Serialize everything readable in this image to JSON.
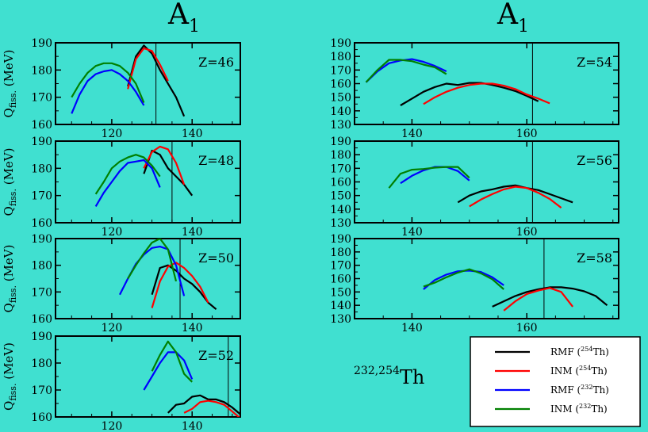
{
  "figure": {
    "background": "#40e0d0",
    "column_titles": [
      {
        "main": "A",
        "sub": "1"
      },
      {
        "main": "A",
        "sub": "1"
      }
    ],
    "ylabel": {
      "main": "Q",
      "sub": "fiss.",
      "unit": "(MeV)"
    },
    "nucleus_label": {
      "sup": "232,254",
      "main": "Th"
    }
  },
  "legend": {
    "entries": [
      {
        "name": "RMF",
        "sup": "254",
        "el": "Th",
        "color": "#000000"
      },
      {
        "name": "INM",
        "sup": "254",
        "el": "Th",
        "color": "#ff0000"
      },
      {
        "name": "RMF",
        "sup": "232",
        "el": "Th",
        "color": "#0000ff"
      },
      {
        "name": "INM",
        "sup": "232",
        "el": "Th",
        "color": "#008000"
      }
    ]
  },
  "chart_data": [
    {
      "type": "line",
      "panel_label": "Z=46",
      "xlabel": "A1",
      "ylabel": "Q_fiss. (MeV)",
      "xlim": [
        106,
        152
      ],
      "ylim": [
        160,
        190
      ],
      "xticks": [
        120,
        140
      ],
      "yticks": [
        160,
        170,
        180,
        190
      ],
      "vline": 131,
      "series": [
        {
          "name": "RMF (254Th)",
          "color": "#000000",
          "x": [
            124,
            126,
            128,
            130,
            132,
            134,
            136,
            138
          ],
          "y": [
            174,
            185,
            189,
            186,
            180,
            175,
            170,
            163
          ]
        },
        {
          "name": "INM (254Th)",
          "color": "#ff0000",
          "x": [
            124,
            126,
            128,
            130,
            132,
            134
          ],
          "y": [
            173,
            184,
            188,
            187,
            182,
            176
          ]
        },
        {
          "name": "RMF (232Th)",
          "color": "#0000ff",
          "x": [
            110,
            112,
            114,
            116,
            118,
            120,
            122,
            124,
            126,
            128
          ],
          "y": [
            164,
            171,
            176,
            178.5,
            179.5,
            180,
            178.5,
            176,
            172,
            167
          ]
        },
        {
          "name": "INM (232Th)",
          "color": "#008000",
          "x": [
            110,
            112,
            114,
            116,
            118,
            120,
            122,
            124,
            126,
            128
          ],
          "y": [
            170,
            175,
            179,
            181.5,
            182.5,
            182.5,
            181.5,
            179,
            175,
            168
          ]
        }
      ]
    },
    {
      "type": "line",
      "panel_label": "Z=48",
      "xlabel": "A1",
      "ylabel": "Q_fiss. (MeV)",
      "xlim": [
        106,
        152
      ],
      "ylim": [
        160,
        190
      ],
      "xticks": [
        120,
        140
      ],
      "yticks": [
        160,
        170,
        180,
        190
      ],
      "vline": 135,
      "series": [
        {
          "name": "RMF (254Th)",
          "color": "#000000",
          "x": [
            128,
            130,
            132,
            134,
            136,
            138,
            140
          ],
          "y": [
            178,
            186.5,
            185,
            180,
            177,
            174,
            170
          ]
        },
        {
          "name": "INM (254Th)",
          "color": "#ff0000",
          "x": [
            128,
            130,
            132,
            134,
            136,
            138
          ],
          "y": [
            180,
            186,
            188,
            187,
            182,
            174
          ]
        },
        {
          "name": "RMF (232Th)",
          "color": "#0000ff",
          "x": [
            116,
            118,
            120,
            122,
            124,
            126,
            128,
            130,
            132
          ],
          "y": [
            166,
            171,
            175,
            179,
            182,
            182.5,
            183,
            180,
            173
          ]
        },
        {
          "name": "INM (232Th)",
          "color": "#008000",
          "x": [
            116,
            118,
            120,
            122,
            124,
            126,
            128,
            130,
            132
          ],
          "y": [
            170.5,
            175,
            180,
            182.5,
            184,
            185,
            184,
            181,
            177
          ]
        }
      ]
    },
    {
      "type": "line",
      "panel_label": "Z=50",
      "xlabel": "A1",
      "ylabel": "Q_fiss. (MeV)",
      "xlim": [
        106,
        152
      ],
      "ylim": [
        160,
        190
      ],
      "xticks": [
        120,
        140
      ],
      "yticks": [
        160,
        170,
        180,
        190
      ],
      "vline": 137,
      "series": [
        {
          "name": "RMF (254Th)",
          "color": "#000000",
          "x": [
            130,
            132,
            134,
            136,
            138,
            140,
            142,
            144,
            146
          ],
          "y": [
            169,
            179,
            180,
            178,
            175,
            173,
            170,
            166,
            163.5
          ]
        },
        {
          "name": "INM (254Th)",
          "color": "#ff0000",
          "x": [
            130,
            132,
            134,
            136,
            138,
            140,
            142,
            144
          ],
          "y": [
            164,
            174,
            179.5,
            181,
            179,
            176,
            172,
            166
          ]
        },
        {
          "name": "RMF (232Th)",
          "color": "#0000ff",
          "x": [
            122,
            124,
            126,
            128,
            130,
            132,
            134,
            136,
            138
          ],
          "y": [
            169,
            175,
            180.5,
            184,
            186.5,
            187,
            186,
            180,
            168.5
          ]
        },
        {
          "name": "INM (232Th)",
          "color": "#008000",
          "x": [
            124,
            126,
            128,
            130,
            132,
            134,
            136
          ],
          "y": [
            175,
            180,
            184.5,
            188.5,
            190,
            186,
            174
          ]
        }
      ]
    },
    {
      "type": "line",
      "panel_label": "Z=52",
      "xlabel": "A1",
      "ylabel": "Q_fiss. (MeV)",
      "xlim": [
        106,
        152
      ],
      "ylim": [
        160,
        190
      ],
      "xticks": [
        120,
        140
      ],
      "yticks": [
        160,
        170,
        180,
        190
      ],
      "vline": 149,
      "series": [
        {
          "name": "RMF (254Th)",
          "color": "#000000",
          "x": [
            134,
            136,
            138,
            140,
            142,
            144,
            146,
            148,
            150,
            152
          ],
          "y": [
            161.5,
            164.5,
            165,
            167.5,
            168,
            166.5,
            166.5,
            165.5,
            163.5,
            161
          ]
        },
        {
          "name": "INM (254Th)",
          "color": "#ff0000",
          "x": [
            138,
            140,
            142,
            144,
            146,
            148,
            150,
            152
          ],
          "y": [
            161.5,
            163,
            165.5,
            166,
            165.5,
            164.5,
            162,
            159.5
          ]
        },
        {
          "name": "RMF (232Th)",
          "color": "#0000ff",
          "x": [
            128,
            130,
            132,
            134,
            136,
            138,
            140
          ],
          "y": [
            170,
            175,
            180,
            184,
            184,
            181,
            174
          ]
        },
        {
          "name": "INM (232Th)",
          "color": "#008000",
          "x": [
            130,
            132,
            134,
            136,
            138,
            140
          ],
          "y": [
            177,
            183,
            188,
            184,
            176,
            173
          ]
        }
      ]
    },
    {
      "type": "line",
      "panel_label": "Z=54",
      "xlabel": "A1",
      "ylabel": "Q_fiss. (MeV)",
      "xlim": [
        130,
        176
      ],
      "ylim": [
        130,
        190
      ],
      "xticks": [
        140,
        160
      ],
      "yticks": [
        130,
        140,
        150,
        160,
        170,
        180,
        190
      ],
      "vline": 161,
      "series": [
        {
          "name": "RMF (254Th)",
          "color": "#000000",
          "x": [
            138,
            140,
            142,
            144,
            146,
            148,
            150,
            152,
            154,
            156,
            158,
            160,
            162
          ],
          "y": [
            144,
            149,
            154,
            157.5,
            160,
            159,
            160.5,
            160.5,
            159,
            157,
            154.5,
            151,
            147
          ]
        },
        {
          "name": "INM (254Th)",
          "color": "#ff0000",
          "x": [
            142,
            144,
            146,
            148,
            150,
            152,
            154,
            156,
            158,
            160,
            162,
            164
          ],
          "y": [
            145,
            150,
            154,
            157,
            159,
            160,
            160,
            158.5,
            156,
            152,
            149,
            145.5
          ]
        },
        {
          "name": "RMF (232Th)",
          "color": "#0000ff",
          "x": [
            132,
            134,
            136,
            138,
            140,
            142,
            144,
            146
          ],
          "y": [
            161,
            169,
            175,
            177,
            178,
            176,
            173,
            169
          ]
        },
        {
          "name": "INM (232Th)",
          "color": "#008000",
          "x": [
            132,
            134,
            136,
            138,
            140,
            142,
            144,
            146
          ],
          "y": [
            161,
            170,
            177.5,
            177.5,
            176.5,
            174,
            172,
            167
          ]
        }
      ]
    },
    {
      "type": "line",
      "panel_label": "Z=56",
      "xlabel": "A1",
      "ylabel": "Q_fiss. (MeV)",
      "xlim": [
        130,
        176
      ],
      "ylim": [
        130,
        190
      ],
      "xticks": [
        140,
        160
      ],
      "yticks": [
        130,
        140,
        150,
        160,
        170,
        180,
        190
      ],
      "vline": 161,
      "series": [
        {
          "name": "RMF (254Th)",
          "color": "#000000",
          "x": [
            148,
            150,
            152,
            154,
            156,
            158,
            160,
            162,
            164,
            166,
            168
          ],
          "y": [
            145,
            150,
            153,
            154.5,
            156.5,
            157.5,
            155.5,
            154,
            151,
            148,
            145
          ]
        },
        {
          "name": "INM (254Th)",
          "color": "#ff0000",
          "x": [
            150,
            152,
            154,
            156,
            158,
            160,
            162,
            164,
            166
          ],
          "y": [
            142,
            147,
            151,
            154.5,
            156.5,
            155.5,
            152,
            147.5,
            141
          ]
        },
        {
          "name": "RMF (232Th)",
          "color": "#0000ff",
          "x": [
            138,
            140,
            142,
            144,
            146,
            148,
            150
          ],
          "y": [
            159,
            164.5,
            168.5,
            171,
            171,
            168,
            161
          ]
        },
        {
          "name": "INM (232Th)",
          "color": "#008000",
          "x": [
            136,
            138,
            140,
            142,
            144,
            146,
            148,
            150
          ],
          "y": [
            155.5,
            166,
            169,
            169.5,
            170.5,
            171,
            171,
            163
          ]
        }
      ]
    },
    {
      "type": "line",
      "panel_label": "Z=58",
      "xlabel": "A1",
      "ylabel": "Q_fiss. (MeV)",
      "xlim": [
        130,
        176
      ],
      "ylim": [
        130,
        190
      ],
      "xticks": [
        140,
        160
      ],
      "yticks": [
        130,
        140,
        150,
        160,
        170,
        180,
        190
      ],
      "vline": 163,
      "series": [
        {
          "name": "RMF (254Th)",
          "color": "#000000",
          "x": [
            154,
            156,
            158,
            160,
            162,
            164,
            166,
            168,
            170,
            172,
            174
          ],
          "y": [
            139,
            143,
            147,
            150,
            152,
            153.5,
            153.5,
            152.5,
            150.5,
            147,
            140
          ]
        },
        {
          "name": "INM (254Th)",
          "color": "#ff0000",
          "x": [
            156,
            158,
            160,
            162,
            164,
            166,
            168
          ],
          "y": [
            136,
            143,
            148.5,
            151,
            153,
            150,
            139
          ]
        },
        {
          "name": "RMF (232Th)",
          "color": "#0000ff",
          "x": [
            142,
            144,
            146,
            148,
            150,
            152,
            154,
            156
          ],
          "y": [
            152,
            159,
            163,
            165.5,
            166,
            165,
            161,
            155
          ]
        },
        {
          "name": "INM (232Th)",
          "color": "#008000",
          "x": [
            142,
            144,
            146,
            148,
            150,
            152,
            154,
            156
          ],
          "y": [
            154,
            157,
            161,
            164.5,
            167,
            164,
            159.5,
            152
          ]
        }
      ]
    }
  ]
}
